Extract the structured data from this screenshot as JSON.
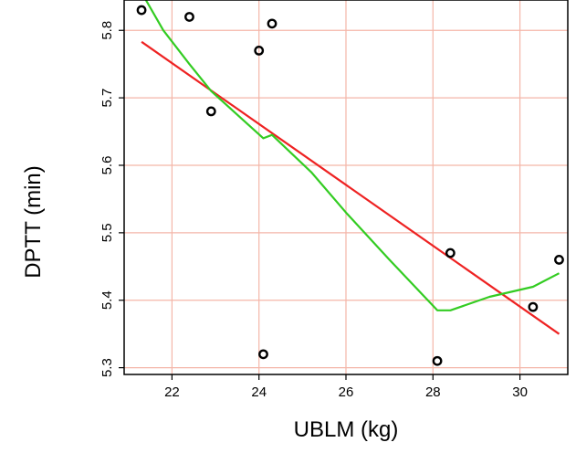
{
  "chart_data": {
    "type": "scatter",
    "title": "",
    "xlabel": "UBLM (kg)",
    "ylabel": "DPTT  (min)",
    "xlim": [
      20.9,
      31.1
    ],
    "ylim": [
      5.29,
      5.845
    ],
    "xticks": [
      22,
      24,
      26,
      28,
      30
    ],
    "yticks": [
      5.3,
      5.4,
      5.5,
      5.6,
      5.7,
      5.8
    ],
    "xtick_labels": [
      "22",
      "24",
      "26",
      "28",
      "30"
    ],
    "ytick_labels": [
      "5.3",
      "5.4",
      "5.5",
      "5.6",
      "5.7",
      "5.8"
    ],
    "grid": true,
    "grid_color": "#f4b6a8",
    "points": [
      {
        "x": 21.3,
        "y": 5.83
      },
      {
        "x": 22.4,
        "y": 5.82
      },
      {
        "x": 22.9,
        "y": 5.68
      },
      {
        "x": 24.0,
        "y": 5.77
      },
      {
        "x": 24.1,
        "y": 5.32
      },
      {
        "x": 24.3,
        "y": 5.81
      },
      {
        "x": 28.1,
        "y": 5.31
      },
      {
        "x": 28.4,
        "y": 5.47
      },
      {
        "x": 30.3,
        "y": 5.39
      },
      {
        "x": 30.9,
        "y": 5.46
      }
    ],
    "series": [
      {
        "kind": "linear-fit",
        "color": "#ee2222",
        "x": [
          21.3,
          30.9
        ],
        "y": [
          5.783,
          5.35
        ]
      },
      {
        "kind": "smoother",
        "color": "#33cc22",
        "x": [
          21.4,
          21.8,
          22.4,
          22.9,
          23.5,
          24.1,
          24.3,
          25.2,
          26.0,
          27.0,
          28.1,
          28.4,
          29.3,
          30.3,
          30.9
        ],
        "y": [
          5.845,
          5.8,
          5.75,
          5.71,
          5.675,
          5.64,
          5.645,
          5.59,
          5.53,
          5.46,
          5.385,
          5.385,
          5.405,
          5.42,
          5.44
        ]
      }
    ]
  }
}
